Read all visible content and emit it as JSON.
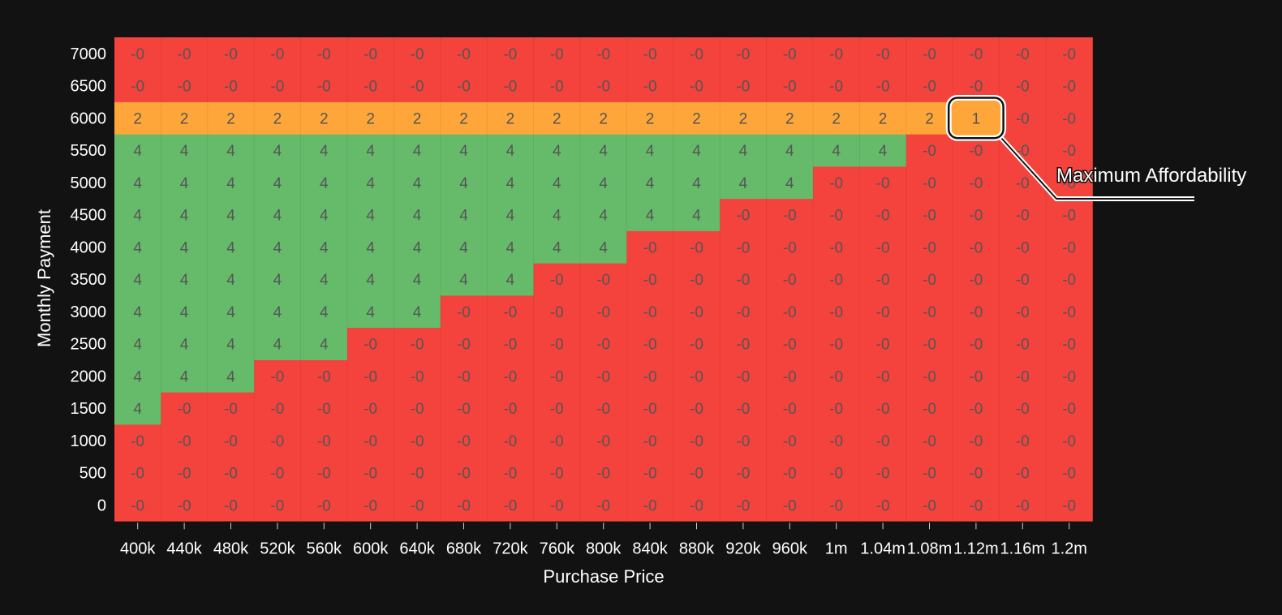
{
  "chart_data": {
    "type": "heatmap",
    "title": "",
    "xlabel": "Purchase Price",
    "ylabel": "Monthly Payment",
    "x_categories": [
      "400k",
      "440k",
      "480k",
      "520k",
      "560k",
      "600k",
      "640k",
      "680k",
      "720k",
      "760k",
      "800k",
      "840k",
      "880k",
      "920k",
      "960k",
      "1m",
      "1.04m",
      "1.08m",
      "1.12m",
      "1.16m",
      "1.2m"
    ],
    "y_categories": [
      "0",
      "500",
      "1000",
      "1500",
      "2000",
      "2500",
      "3000",
      "3500",
      "4000",
      "4500",
      "5000",
      "5500",
      "6000",
      "6500",
      "7000"
    ],
    "values": [
      [
        "-0",
        "-0",
        "-0",
        "-0",
        "-0",
        "-0",
        "-0",
        "-0",
        "-0",
        "-0",
        "-0",
        "-0",
        "-0",
        "-0",
        "-0",
        "-0",
        "-0",
        "-0",
        "-0",
        "-0",
        "-0"
      ],
      [
        "-0",
        "-0",
        "-0",
        "-0",
        "-0",
        "-0",
        "-0",
        "-0",
        "-0",
        "-0",
        "-0",
        "-0",
        "-0",
        "-0",
        "-0",
        "-0",
        "-0",
        "-0",
        "-0",
        "-0",
        "-0"
      ],
      [
        "-0",
        "-0",
        "-0",
        "-0",
        "-0",
        "-0",
        "-0",
        "-0",
        "-0",
        "-0",
        "-0",
        "-0",
        "-0",
        "-0",
        "-0",
        "-0",
        "-0",
        "-0",
        "-0",
        "-0",
        "-0"
      ],
      [
        "4",
        "-0",
        "-0",
        "-0",
        "-0",
        "-0",
        "-0",
        "-0",
        "-0",
        "-0",
        "-0",
        "-0",
        "-0",
        "-0",
        "-0",
        "-0",
        "-0",
        "-0",
        "-0",
        "-0",
        "-0"
      ],
      [
        "4",
        "4",
        "4",
        "-0",
        "-0",
        "-0",
        "-0",
        "-0",
        "-0",
        "-0",
        "-0",
        "-0",
        "-0",
        "-0",
        "-0",
        "-0",
        "-0",
        "-0",
        "-0",
        "-0",
        "-0"
      ],
      [
        "4",
        "4",
        "4",
        "4",
        "4",
        "-0",
        "-0",
        "-0",
        "-0",
        "-0",
        "-0",
        "-0",
        "-0",
        "-0",
        "-0",
        "-0",
        "-0",
        "-0",
        "-0",
        "-0",
        "-0"
      ],
      [
        "4",
        "4",
        "4",
        "4",
        "4",
        "4",
        "4",
        "-0",
        "-0",
        "-0",
        "-0",
        "-0",
        "-0",
        "-0",
        "-0",
        "-0",
        "-0",
        "-0",
        "-0",
        "-0",
        "-0"
      ],
      [
        "4",
        "4",
        "4",
        "4",
        "4",
        "4",
        "4",
        "4",
        "4",
        "-0",
        "-0",
        "-0",
        "-0",
        "-0",
        "-0",
        "-0",
        "-0",
        "-0",
        "-0",
        "-0",
        "-0"
      ],
      [
        "4",
        "4",
        "4",
        "4",
        "4",
        "4",
        "4",
        "4",
        "4",
        "4",
        "4",
        "-0",
        "-0",
        "-0",
        "-0",
        "-0",
        "-0",
        "-0",
        "-0",
        "-0",
        "-0"
      ],
      [
        "4",
        "4",
        "4",
        "4",
        "4",
        "4",
        "4",
        "4",
        "4",
        "4",
        "4",
        "4",
        "4",
        "-0",
        "-0",
        "-0",
        "-0",
        "-0",
        "-0",
        "-0",
        "-0"
      ],
      [
        "4",
        "4",
        "4",
        "4",
        "4",
        "4",
        "4",
        "4",
        "4",
        "4",
        "4",
        "4",
        "4",
        "4",
        "4",
        "-0",
        "-0",
        "-0",
        "-0",
        "-0",
        "-0"
      ],
      [
        "4",
        "4",
        "4",
        "4",
        "4",
        "4",
        "4",
        "4",
        "4",
        "4",
        "4",
        "4",
        "4",
        "4",
        "4",
        "4",
        "4",
        "-0",
        "-0",
        "-0",
        "-0"
      ],
      [
        "2",
        "2",
        "2",
        "2",
        "2",
        "2",
        "2",
        "2",
        "2",
        "2",
        "2",
        "2",
        "2",
        "2",
        "2",
        "2",
        "2",
        "2",
        "1",
        "-0",
        "-0"
      ],
      [
        "-0",
        "-0",
        "-0",
        "-0",
        "-0",
        "-0",
        "-0",
        "-0",
        "-0",
        "-0",
        "-0",
        "-0",
        "-0",
        "-0",
        "-0",
        "-0",
        "-0",
        "-0",
        "-0",
        "-0",
        "-0"
      ],
      [
        "-0",
        "-0",
        "-0",
        "-0",
        "-0",
        "-0",
        "-0",
        "-0",
        "-0",
        "-0",
        "-0",
        "-0",
        "-0",
        "-0",
        "-0",
        "-0",
        "-0",
        "-0",
        "-0",
        "-0",
        "-0"
      ]
    ],
    "color_scale": {
      "4": "#66bb6a",
      "2": "#ffa63a",
      "1": "#ffa63a",
      "-0": "#f4433c"
    },
    "grid": false,
    "annotation": {
      "text": "Maximum Affordability",
      "x": "1.12m",
      "y": "6000"
    }
  },
  "colors": {
    "background": "#121212",
    "highlight_border": "#ffffff",
    "highlight_inner": "#121212"
  }
}
